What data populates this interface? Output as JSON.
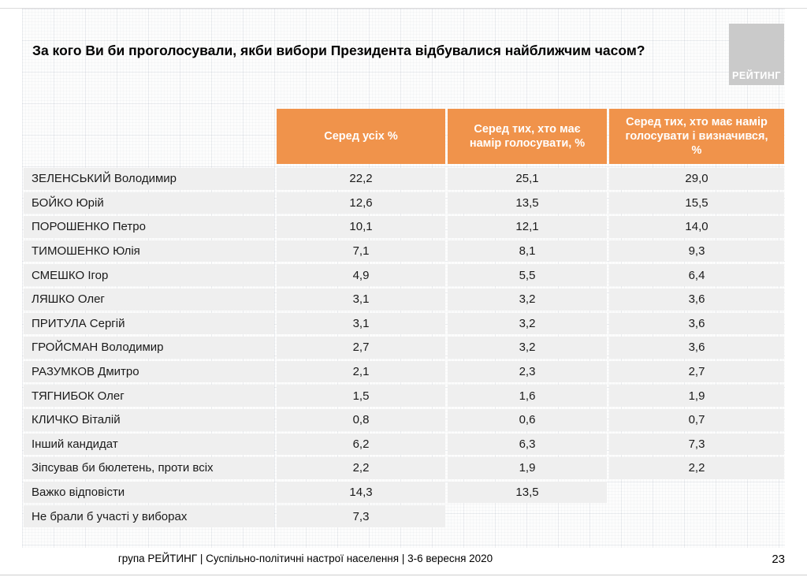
{
  "slide": {
    "title": "За кого Ви би проголосували, якби вибори Президента відбувалися найближчим часом?",
    "logo_text": "РЕЙТИНГ",
    "footer": "група РЕЙТИНГ |  Суспільно-політичні настрої населення  | 3-6 вересня  2020",
    "page_number": "23"
  },
  "chart_data": {
    "type": "table",
    "title": "За кого Ви би проголосували, якби вибори Президента відбувалися найближчим часом?",
    "columns": [
      "Серед усіх %",
      "Серед тих, хто має намір голосувати, %",
      "Серед тих, хто має намір голосувати і визначився, %"
    ],
    "rows": [
      {
        "label": "ЗЕЛЕНСЬКИЙ Володимир",
        "values": [
          "22,2",
          "25,1",
          "29,0"
        ]
      },
      {
        "label": "БОЙКО Юрій",
        "values": [
          "12,6",
          "13,5",
          "15,5"
        ]
      },
      {
        "label": "ПОРОШЕНКО Петро",
        "values": [
          "10,1",
          "12,1",
          "14,0"
        ]
      },
      {
        "label": "ТИМОШЕНКО Юлія",
        "values": [
          "7,1",
          "8,1",
          "9,3"
        ]
      },
      {
        "label": "СМЕШКО Ігор",
        "values": [
          "4,9",
          "5,5",
          "6,4"
        ]
      },
      {
        "label": "ЛЯШКО Олег",
        "values": [
          "3,1",
          "3,2",
          "3,6"
        ]
      },
      {
        "label": "ПРИТУЛА Сергій",
        "values": [
          "3,1",
          "3,2",
          "3,6"
        ]
      },
      {
        "label": "ГРОЙСМАН Володимир",
        "values": [
          "2,7",
          "3,2",
          "3,6"
        ]
      },
      {
        "label": "РАЗУМКОВ Дмитро",
        "values": [
          "2,1",
          "2,3",
          "2,7"
        ]
      },
      {
        "label": "ТЯГНИБОК Олег",
        "values": [
          "1,5",
          "1,6",
          "1,9"
        ]
      },
      {
        "label": "КЛИЧКО Віталій",
        "values": [
          "0,8",
          "0,6",
          "0,7"
        ]
      },
      {
        "label": "Інший кандидат",
        "values": [
          "6,2",
          "6,3",
          "7,3"
        ]
      },
      {
        "label": "Зіпсував би бюлетень, проти всіх",
        "values": [
          "2,2",
          "1,9",
          "2,2"
        ]
      },
      {
        "label": "Важко відповісти",
        "values": [
          "14,3",
          "13,5",
          null
        ]
      },
      {
        "label": "Не брали б участі у виборах",
        "values": [
          "7,3",
          null,
          null
        ]
      }
    ],
    "colors": {
      "header_bg": "#F0934B",
      "header_text": "#FFFFFF",
      "cell_bg": "#EFEFEF"
    },
    "layout": {
      "grid": "graph-paper background",
      "legend": "none"
    }
  }
}
